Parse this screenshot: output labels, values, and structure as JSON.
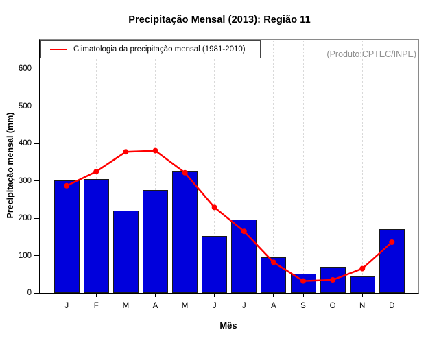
{
  "title": "Precipitação Mensal (2013): Região 11",
  "watermark": "(Produto:CPTEC/INPE)",
  "legend": {
    "label": "Climatologia da precipitação mensal (1981-2010)"
  },
  "chart_data": {
    "type": "bar",
    "title": "Precipitação Mensal (2013): Região 11",
    "xlabel": "Mês",
    "ylabel": "Precipitação mensal (mm)",
    "categories": [
      "J",
      "F",
      "M",
      "A",
      "M",
      "J",
      "J",
      "A",
      "S",
      "O",
      "N",
      "D"
    ],
    "series": [
      {
        "name": "Precipitação mensal 2013",
        "type": "bar",
        "color": "#0000dc",
        "values": [
          301,
          305,
          221,
          275,
          325,
          152,
          196,
          96,
          52,
          69,
          44,
          171
        ]
      },
      {
        "name": "Climatologia da precipitação mensal (1981-2010)",
        "type": "line",
        "color": "#ff0000",
        "values": [
          287,
          325,
          378,
          381,
          322,
          229,
          165,
          82,
          32,
          35,
          65,
          136
        ]
      }
    ],
    "ylim": [
      0,
      678
    ],
    "yticks": [
      0,
      100,
      200,
      300,
      400,
      500,
      600
    ],
    "grid": "vertical-dotted",
    "legend_position": "top-left"
  },
  "colors": {
    "bar_fill": "#0000dc",
    "bar_border": "#1a1a1a",
    "line": "#ff0000",
    "grid": "#d9d9d9",
    "watermark": "#8f8f8f",
    "frame": "#8a8a8a",
    "axis": "#000000"
  }
}
